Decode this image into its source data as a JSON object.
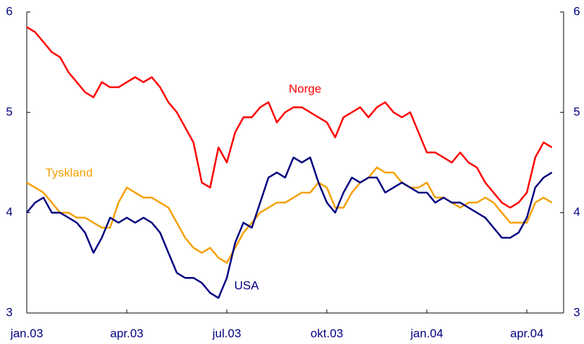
{
  "chart_data": {
    "type": "line",
    "x": [
      0,
      0.25,
      0.5,
      0.75,
      1,
      1.25,
      1.5,
      1.75,
      2,
      2.25,
      2.5,
      2.75,
      3,
      3.25,
      3.5,
      3.75,
      4,
      4.25,
      4.5,
      4.75,
      5,
      5.25,
      5.5,
      5.75,
      6,
      6.25,
      6.5,
      6.75,
      7,
      7.25,
      7.5,
      7.75,
      8,
      8.25,
      8.5,
      8.75,
      9,
      9.25,
      9.5,
      9.75,
      10,
      10.25,
      10.5,
      10.75,
      11,
      11.25,
      11.5,
      11.75,
      12,
      12.25,
      12.5,
      12.75,
      13,
      13.25,
      13.5,
      13.75,
      14,
      14.25,
      14.5,
      14.75,
      15,
      15.25,
      15.5,
      15.75
    ],
    "series": [
      {
        "name": "Norge",
        "color": "#ff0000",
        "values": [
          5.85,
          5.8,
          5.7,
          5.6,
          5.55,
          5.4,
          5.3,
          5.2,
          5.15,
          5.3,
          5.25,
          5.25,
          5.3,
          5.35,
          5.3,
          5.35,
          5.25,
          5.1,
          5.0,
          4.85,
          4.7,
          4.3,
          4.25,
          4.65,
          4.5,
          4.8,
          4.95,
          4.95,
          5.05,
          5.1,
          4.9,
          5.0,
          5.05,
          5.05,
          5.0,
          4.95,
          4.9,
          4.75,
          4.95,
          5.0,
          5.05,
          4.95,
          5.05,
          5.1,
          5.0,
          4.95,
          5.0,
          4.8,
          4.6,
          4.6,
          4.55,
          4.5,
          4.6,
          4.5,
          4.45,
          4.3,
          4.2,
          4.1,
          4.05,
          4.1,
          4.2,
          4.55,
          4.7,
          4.65
        ]
      },
      {
        "name": "Tyskland",
        "color": "#f5a000",
        "values": [
          4.3,
          4.25,
          4.2,
          4.1,
          4.0,
          4.0,
          3.95,
          3.95,
          3.9,
          3.85,
          3.85,
          4.1,
          4.25,
          4.2,
          4.15,
          4.15,
          4.1,
          4.05,
          3.9,
          3.75,
          3.65,
          3.6,
          3.65,
          3.55,
          3.5,
          3.65,
          3.8,
          3.9,
          4.0,
          4.05,
          4.1,
          4.1,
          4.15,
          4.2,
          4.2,
          4.3,
          4.25,
          4.05,
          4.05,
          4.2,
          4.3,
          4.35,
          4.45,
          4.4,
          4.4,
          4.3,
          4.25,
          4.25,
          4.3,
          4.15,
          4.15,
          4.1,
          4.05,
          4.1,
          4.1,
          4.15,
          4.1,
          4.0,
          3.9,
          3.9,
          3.9,
          4.1,
          4.15,
          4.1
        ]
      },
      {
        "name": "USA",
        "color": "#000080",
        "values": [
          4.0,
          4.1,
          4.15,
          4.0,
          4.0,
          3.95,
          3.9,
          3.8,
          3.6,
          3.75,
          3.95,
          3.9,
          3.95,
          3.9,
          3.95,
          3.9,
          3.8,
          3.6,
          3.4,
          3.35,
          3.35,
          3.3,
          3.2,
          3.15,
          3.35,
          3.7,
          3.9,
          3.85,
          4.1,
          4.35,
          4.4,
          4.35,
          4.55,
          4.5,
          4.55,
          4.3,
          4.1,
          4.0,
          4.2,
          4.35,
          4.3,
          4.35,
          4.35,
          4.2,
          4.25,
          4.3,
          4.25,
          4.2,
          4.2,
          4.1,
          4.15,
          4.1,
          4.1,
          4.05,
          4.0,
          3.95,
          3.85,
          3.75,
          3.75,
          3.8,
          3.95,
          4.25,
          4.35,
          4.4
        ]
      }
    ],
    "xlim": [
      0,
      16.1
    ],
    "xticks": [
      {
        "value": 0,
        "label": "jan.03"
      },
      {
        "value": 3,
        "label": "apr.03"
      },
      {
        "value": 6,
        "label": "jul.03"
      },
      {
        "value": 9,
        "label": "okt.03"
      },
      {
        "value": 12,
        "label": "jan.04"
      },
      {
        "value": 15,
        "label": "apr.04"
      }
    ],
    "ylim": [
      3,
      6
    ],
    "yticks": [
      3,
      4,
      5,
      6
    ],
    "y2lim": [
      3,
      6
    ],
    "y2ticks": [
      3,
      4,
      5,
      6
    ],
    "grid": false
  }
}
